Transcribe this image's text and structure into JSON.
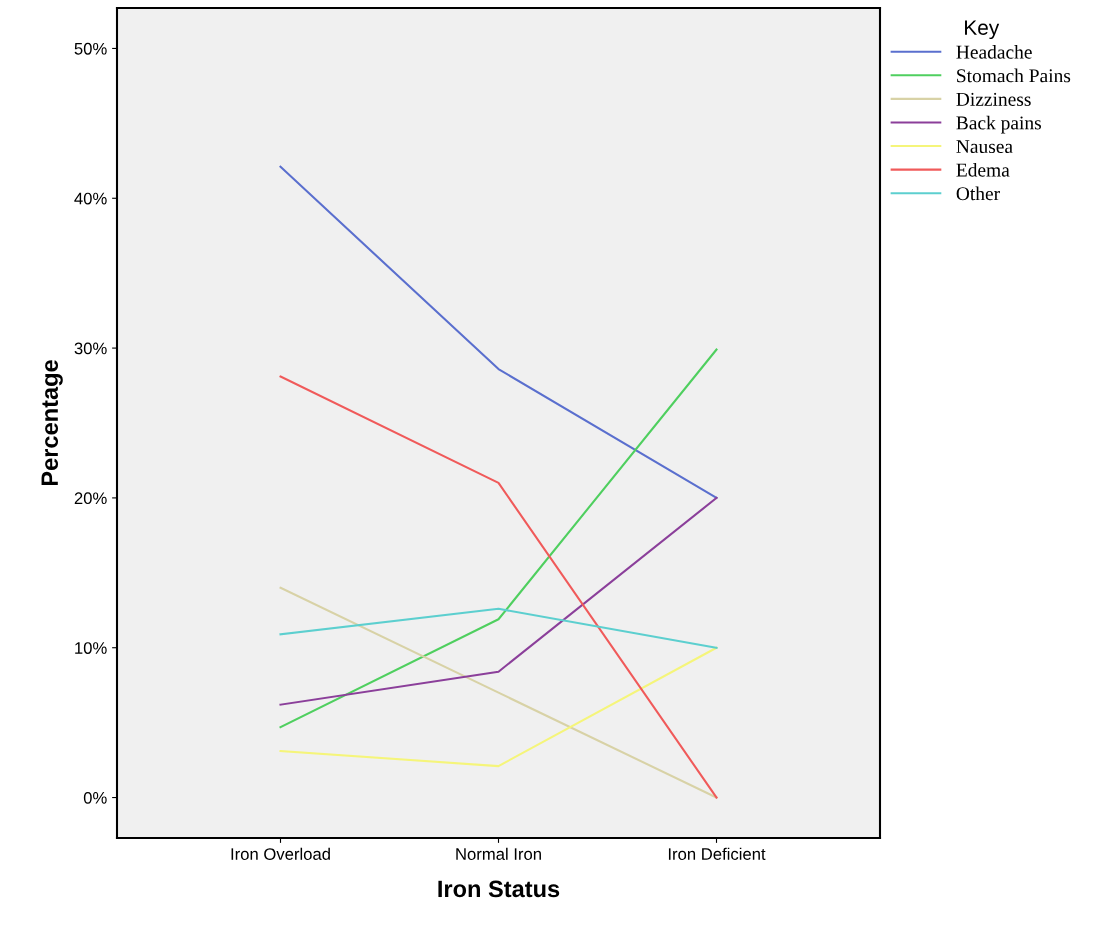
{
  "chart_data": {
    "type": "line",
    "xlabel": "Iron Status",
    "ylabel": "Percentage",
    "legend_title": "Key",
    "legend": "right",
    "grid": false,
    "marker": "none",
    "line_style": "solid",
    "categories": [
      "Iron Overload",
      "Normal Iron",
      "Iron Deficient"
    ],
    "ylim": [
      -2.7,
      52.7
    ],
    "yticks": [
      {
        "value": 0,
        "label": "0%"
      },
      {
        "value": 10,
        "label": "10%"
      },
      {
        "value": 20,
        "label": "20%"
      },
      {
        "value": 30,
        "label": "30%"
      },
      {
        "value": 40,
        "label": "40%"
      },
      {
        "value": 50,
        "label": "50%"
      }
    ],
    "series": [
      {
        "name": "Headache",
        "color": "#5a6fce",
        "values": [
          42.1,
          28.6,
          20.0
        ]
      },
      {
        "name": "Stomach Pains",
        "color": "#4fcf5f",
        "values": [
          4.7,
          11.9,
          29.9
        ]
      },
      {
        "name": "Dizziness",
        "color": "#d8d2a6",
        "values": [
          14.0,
          7.0,
          0.0
        ]
      },
      {
        "name": "Back pains",
        "color": "#8b3f9a",
        "values": [
          6.2,
          8.4,
          20.0
        ]
      },
      {
        "name": "Nausea",
        "color": "#f5f57a",
        "values": [
          3.1,
          2.1,
          10.0
        ]
      },
      {
        "name": "Edema",
        "color": "#f05a5a",
        "values": [
          28.1,
          21.0,
          0.0
        ]
      },
      {
        "name": "Other",
        "color": "#5ccfcf",
        "values": [
          10.9,
          12.6,
          10.0
        ]
      }
    ]
  }
}
